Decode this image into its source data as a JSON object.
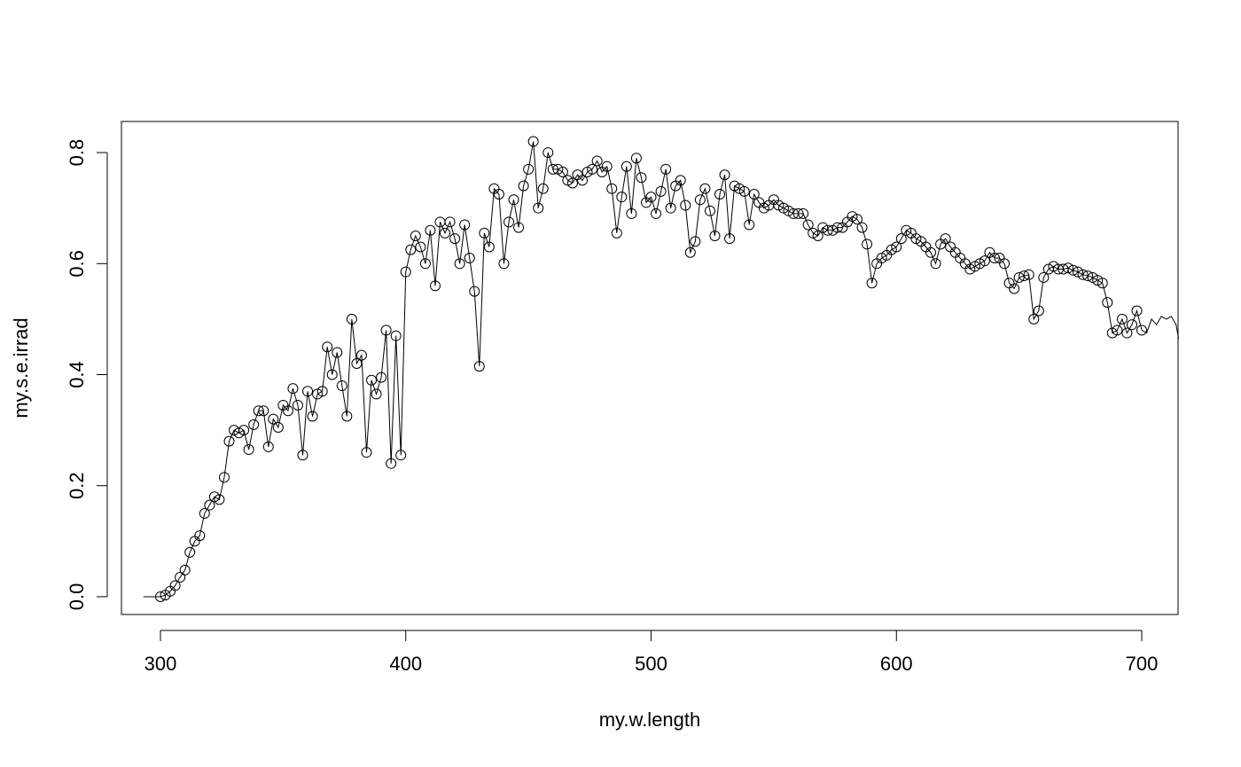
{
  "chart_data": {
    "type": "line",
    "x_label": "my.w.length",
    "y_label": "my.s.e.irrad",
    "xlim": [
      284.1,
      714.8
    ],
    "ylim": [
      -0.032,
      0.856
    ],
    "xticks": [
      300,
      400,
      500,
      600,
      700
    ],
    "yticks": [
      {
        "value": 0,
        "label": "0.0"
      },
      0.2,
      0.4,
      0.6,
      0.8
    ],
    "series": [
      {
        "color": "#000000",
        "markers": false,
        "x": [
          293,
          300
        ],
        "values": [
          0,
          0
        ]
      },
      {
        "color": "#000000",
        "markers": true,
        "x": [
          300,
          302,
          304,
          306,
          308,
          310,
          312,
          314,
          316,
          318,
          320,
          322,
          324,
          326,
          328,
          330,
          332,
          334,
          336,
          338,
          340,
          342,
          344,
          346,
          348,
          350,
          352,
          354,
          356,
          358,
          360,
          362,
          364,
          366,
          368,
          370,
          372,
          374,
          376,
          378,
          380,
          382,
          384,
          386,
          388,
          390,
          392,
          394,
          396,
          398,
          400,
          402,
          404,
          406,
          408,
          410,
          412,
          414,
          416,
          418,
          420,
          422,
          424,
          426,
          428,
          430,
          432,
          434,
          436,
          438,
          440,
          442,
          444,
          446,
          448,
          450,
          452,
          454,
          456,
          458,
          460,
          462,
          464,
          466,
          468,
          470,
          472,
          474,
          476,
          478,
          480,
          482,
          484,
          486,
          488,
          490,
          492,
          494,
          496,
          498,
          500,
          502,
          504,
          506,
          508,
          510,
          512,
          514,
          516,
          518,
          520,
          522,
          524,
          526,
          528,
          530,
          532,
          534,
          536,
          538,
          540,
          542,
          544,
          546,
          548,
          550,
          552,
          554,
          556,
          558,
          560,
          562,
          564,
          566,
          568,
          570,
          572,
          574,
          576,
          578,
          580,
          582,
          584,
          586,
          588,
          590,
          592,
          594,
          596,
          598,
          600,
          602,
          604,
          606,
          608,
          610,
          612,
          614,
          616,
          618,
          620,
          622,
          624,
          626,
          628,
          630,
          632,
          634,
          636,
          638,
          640,
          642,
          644,
          646,
          648,
          650,
          652,
          654,
          656,
          658,
          660,
          662,
          664,
          666,
          668,
          670,
          672,
          674,
          676,
          678,
          680,
          682,
          684,
          686,
          688,
          690,
          692,
          694,
          696,
          698,
          700
        ],
        "values": [
          0,
          0.003,
          0.01,
          0.02,
          0.035,
          0.048,
          0.08,
          0.1,
          0.11,
          0.15,
          0.165,
          0.18,
          0.175,
          0.215,
          0.28,
          0.3,
          0.295,
          0.3,
          0.265,
          0.31,
          0.335,
          0.335,
          0.27,
          0.32,
          0.305,
          0.345,
          0.335,
          0.375,
          0.345,
          0.255,
          0.37,
          0.325,
          0.365,
          0.37,
          0.45,
          0.4,
          0.44,
          0.38,
          0.325,
          0.5,
          0.42,
          0.435,
          0.26,
          0.39,
          0.365,
          0.395,
          0.48,
          0.24,
          0.47,
          0.255,
          0.585,
          0.625,
          0.65,
          0.63,
          0.6,
          0.66,
          0.56,
          0.675,
          0.655,
          0.675,
          0.645,
          0.6,
          0.67,
          0.61,
          0.55,
          0.415,
          0.655,
          0.63,
          0.735,
          0.725,
          0.6,
          0.675,
          0.715,
          0.665,
          0.74,
          0.77,
          0.82,
          0.7,
          0.735,
          0.8,
          0.77,
          0.77,
          0.765,
          0.75,
          0.745,
          0.76,
          0.75,
          0.765,
          0.77,
          0.785,
          0.765,
          0.775,
          0.735,
          0.655,
          0.72,
          0.775,
          0.69,
          0.79,
          0.755,
          0.71,
          0.72,
          0.69,
          0.73,
          0.77,
          0.7,
          0.74,
          0.75,
          0.705,
          0.62,
          0.64,
          0.715,
          0.735,
          0.695,
          0.65,
          0.725,
          0.76,
          0.645,
          0.74,
          0.735,
          0.73,
          0.67,
          0.725,
          0.71,
          0.7,
          0.705,
          0.715,
          0.705,
          0.7,
          0.695,
          0.69,
          0.69,
          0.69,
          0.67,
          0.655,
          0.65,
          0.665,
          0.66,
          0.66,
          0.665,
          0.665,
          0.675,
          0.685,
          0.68,
          0.665,
          0.635,
          0.565,
          0.6,
          0.61,
          0.615,
          0.625,
          0.63,
          0.645,
          0.66,
          0.655,
          0.645,
          0.64,
          0.63,
          0.62,
          0.6,
          0.635,
          0.645,
          0.63,
          0.62,
          0.61,
          0.6,
          0.59,
          0.595,
          0.6,
          0.605,
          0.62,
          0.61,
          0.61,
          0.6,
          0.565,
          0.555,
          0.575,
          0.578,
          0.58,
          0.5,
          0.515,
          0.575,
          0.59,
          0.595,
          0.59,
          0.59,
          0.592,
          0.588,
          0.585,
          0.58,
          0.578,
          0.575,
          0.57,
          0.565,
          0.53,
          0.475,
          0.48,
          0.5,
          0.475,
          0.49,
          0.515,
          0.48
        ]
      },
      {
        "color": "#000000",
        "markers": false,
        "x": [
          700,
          702,
          704,
          706,
          708,
          710,
          712,
          714,
          715
        ],
        "values": [
          0.48,
          0.475,
          0.5,
          0.49,
          0.505,
          0.5,
          0.505,
          0.49,
          0.465
        ]
      }
    ]
  }
}
